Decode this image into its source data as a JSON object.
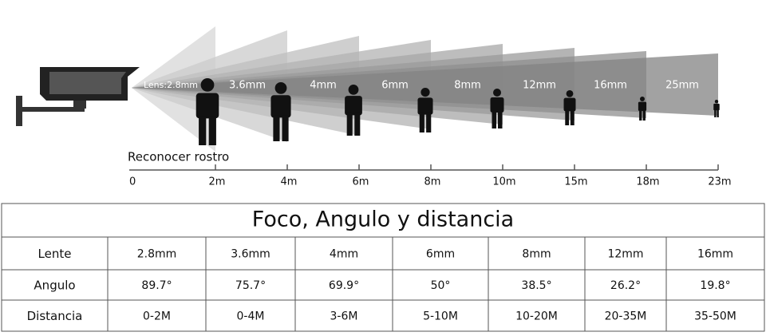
{
  "diagram": {
    "lenses": [
      "Lens:2.8mm",
      "3.6mm",
      "4mm",
      "6mm",
      "8mm",
      "12mm",
      "16mm",
      "25mm"
    ],
    "axis_title": "Reconocer rostro",
    "distances": [
      "0",
      "2m",
      "4m",
      "6m",
      "8m",
      "10m",
      "15m",
      "18m",
      "23m"
    ]
  },
  "table": {
    "title": "Foco, Angulo y distancia",
    "rows": [
      [
        "Lente",
        "2.8mm",
        "3.6mm",
        "4mm",
        "6mm",
        "8mm",
        "12mm",
        "16mm"
      ],
      [
        "Angulo",
        "89.7°",
        "75.7°",
        "69.9°",
        "50°",
        "38.5°",
        "26.2°",
        "19.8°"
      ],
      [
        "Distancia",
        "0-2M",
        "0-4M",
        "3-6M",
        "5-10M",
        "10-20M",
        "20-35M",
        "35-50M"
      ]
    ]
  }
}
